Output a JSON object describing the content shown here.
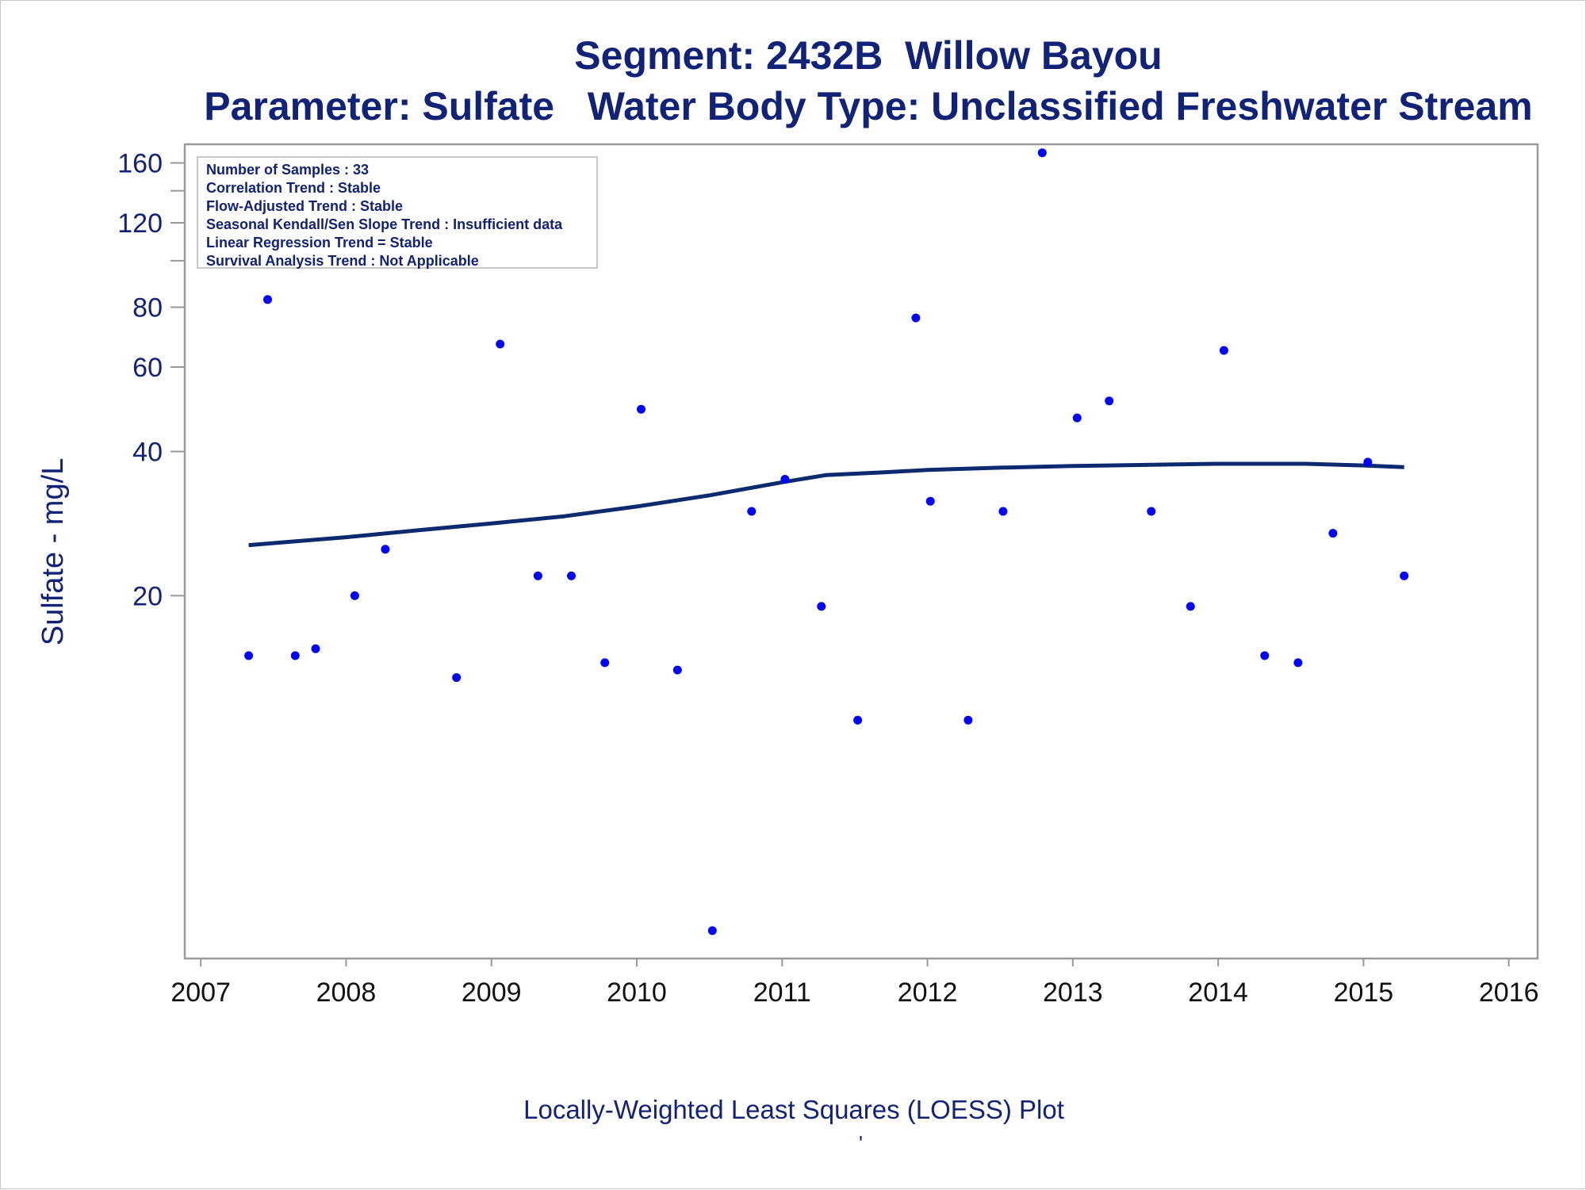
{
  "colors": {
    "text": "#112277",
    "point": "#0000ff",
    "loess_line": "#0d2a6e",
    "frame": "#999999"
  },
  "chart_data": {
    "type": "scatter",
    "title": "Segment: 2432B  Willow Bayou",
    "subtitle": "Parameter: Sulfate   Water Body Type: Unclassified Freshwater Stream",
    "xlabel": "",
    "ylabel": "Sulfate - mg/L",
    "footnote": "Locally-Weighted Least Squares (LOESS) Plot",
    "footnote_mark": "'",
    "y_scale": "log",
    "xlim": [
      2006.95,
      2016.1
    ],
    "ylim": [
      3.5,
      175
    ],
    "x_ticks": [
      "2007",
      "2008",
      "2009",
      "2010",
      "2011",
      "2012",
      "2013",
      "2014",
      "2015",
      "2016"
    ],
    "y_ticks": [
      "20",
      "40",
      "60",
      "80",
      "120",
      "160"
    ],
    "y_minor_ticks": [
      100,
      140
    ],
    "grid": false,
    "legend": "none",
    "info_box": [
      "Number of Samples : 33",
      "Correlation Trend : Stable",
      "Flow-Adjusted Trend : Stable",
      "Seasonal Kendall/Sen Slope Trend : Insufficient data",
      "Linear Regression Trend = Stable",
      "Survival Analysis Trend : Not Applicable"
    ],
    "samples": {
      "x": [
        2007.33,
        2007.46,
        2007.65,
        2007.79,
        2008.06,
        2008.27,
        2008.76,
        2009.06,
        2009.32,
        2009.55,
        2009.78,
        2010.03,
        2010.28,
        2010.52,
        2010.79,
        2011.02,
        2011.27,
        2011.52,
        2011.92,
        2012.02,
        2012.28,
        2012.52,
        2012.79,
        2013.03,
        2013.25,
        2013.54,
        2013.81,
        2014.04,
        2014.32,
        2014.55,
        2014.79,
        2015.03,
        2015.28
      ],
      "y": [
        15,
        83,
        15,
        15.5,
        20,
        25,
        13.5,
        67,
        22,
        22,
        14.5,
        49,
        14,
        4,
        30,
        35,
        19,
        11,
        76,
        31.5,
        11,
        30,
        168,
        47,
        51,
        30,
        19,
        65,
        15,
        14.5,
        27,
        38,
        22
      ]
    },
    "loess_trend": {
      "x": [
        2007.33,
        2008.0,
        2008.5,
        2009.0,
        2009.5,
        2010.0,
        2010.5,
        2011.0,
        2011.3,
        2011.7,
        2012.0,
        2012.5,
        2013.0,
        2013.5,
        2014.0,
        2014.6,
        2015.0,
        2015.28
      ],
      "y": [
        25.5,
        26.5,
        27.4,
        28.3,
        29.3,
        30.7,
        32.4,
        34.5,
        35.7,
        36.2,
        36.6,
        37.0,
        37.3,
        37.5,
        37.7,
        37.7,
        37.4,
        37.1
      ]
    }
  }
}
